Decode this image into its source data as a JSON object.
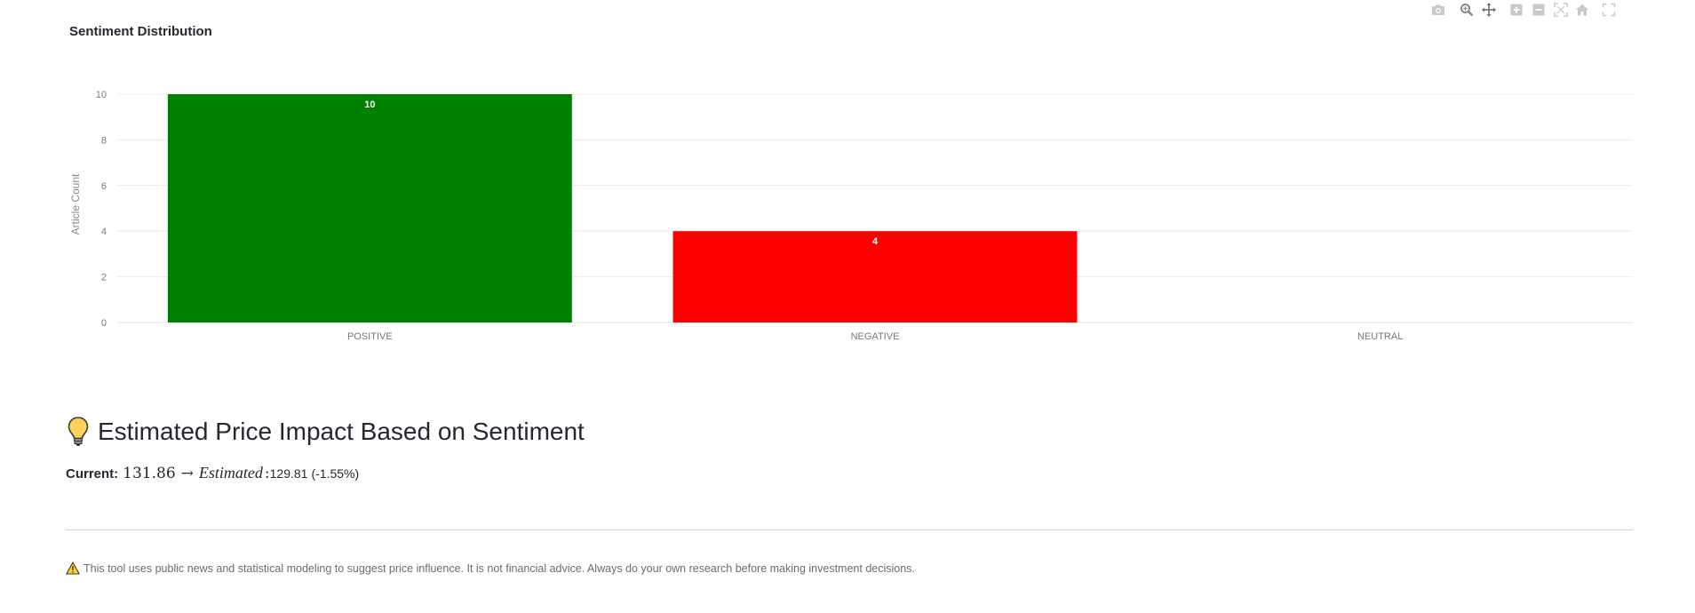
{
  "modebar": {
    "icons": [
      "camera-icon",
      "zoom-icon",
      "pan-icon",
      "zoom-in-icon",
      "zoom-out-icon",
      "autoscale-icon",
      "home-icon",
      "fullscreen-icon"
    ]
  },
  "chart_data": {
    "type": "bar",
    "title": "Sentiment Distribution",
    "categories": [
      "POSITIVE",
      "NEGATIVE",
      "NEUTRAL"
    ],
    "values": [
      10,
      4,
      0
    ],
    "data_labels": [
      "10",
      "4",
      ""
    ],
    "colors": [
      "#008000",
      "#ff0000",
      "#808080"
    ],
    "xlabel": "",
    "ylabel": "Article Count",
    "ylim": [
      0,
      10
    ],
    "yticks": [
      0,
      2,
      4,
      6,
      8,
      10
    ],
    "grid": true,
    "legend": "none"
  },
  "impact": {
    "heading": "Estimated Price Impact Based on Sentiment",
    "icon": "lightbulb-icon",
    "current_label": "Current:",
    "current_value": "131.86",
    "arrow": "→",
    "estimated_label": "Estimated",
    "estimated_colon": ":",
    "estimated_value": "129.81",
    "change": "(-1.55%)"
  },
  "disclaimer": {
    "icon": "warning-icon",
    "text": "This tool uses public news and statistical modeling to suggest price influence. It is not financial advice. Always do your own research before making investment decisions."
  }
}
